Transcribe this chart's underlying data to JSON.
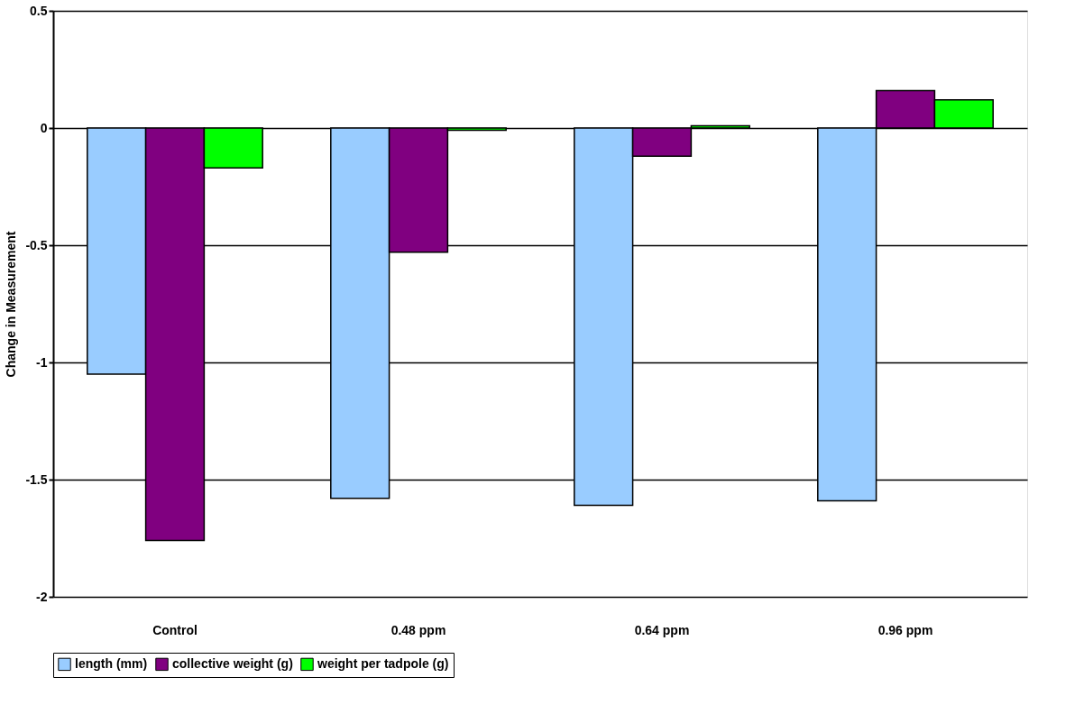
{
  "chart_data": {
    "type": "bar",
    "ylabel": "Change in Measurement",
    "categories": [
      "Control",
      "0.48 ppm",
      "0.64 ppm",
      "0.96 ppm"
    ],
    "series": [
      {
        "name": "length (mm)",
        "color": "#99ccff",
        "values": [
          -1.05,
          -1.58,
          -1.61,
          -1.59
        ]
      },
      {
        "name": "collective weight (g)",
        "color": "#800080",
        "values": [
          -1.76,
          -0.53,
          -0.12,
          0.16
        ]
      },
      {
        "name": "weight per tadpole (g)",
        "color": "#00ff00",
        "values": [
          -0.17,
          -0.01,
          0.01,
          0.12
        ]
      }
    ],
    "ylim": [
      -2,
      0.5
    ],
    "yticks": [
      0.5,
      0,
      -0.5,
      -1,
      -1.5,
      -2
    ],
    "grid": "y",
    "legend": "bottom"
  }
}
